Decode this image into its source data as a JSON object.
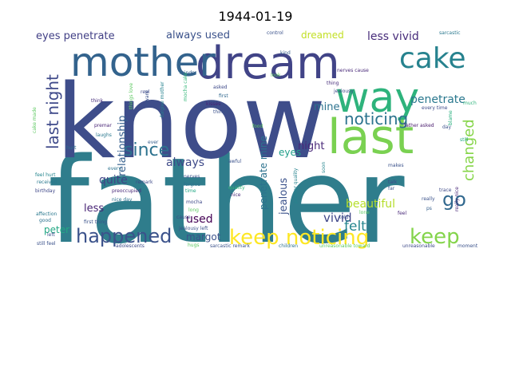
{
  "chart_data": {
    "type": "wordcloud",
    "title": "1944-01-19",
    "background": "#ffffff",
    "colormap": "viridis",
    "words": [
      {
        "text": "father",
        "color": "#2f7d8c"
      },
      {
        "text": "know",
        "color": "#3e4d8a"
      },
      {
        "text": "dream",
        "color": "#414487"
      },
      {
        "text": "mother",
        "color": "#33638d"
      },
      {
        "text": "way",
        "color": "#2eb37c"
      },
      {
        "text": "last",
        "color": "#7ad151"
      },
      {
        "text": "cake",
        "color": "#26828e"
      },
      {
        "text": "keep noticing",
        "color": "#fde725"
      },
      {
        "text": "keep",
        "color": "#84d44b"
      },
      {
        "text": "happened",
        "color": "#3b528b"
      },
      {
        "text": "last night",
        "color": "#3f4a8a"
      },
      {
        "text": "since",
        "color": "#2c728e"
      },
      {
        "text": "go",
        "color": "#31688e"
      },
      {
        "text": "noticing",
        "color": "#2c738e"
      },
      {
        "text": "changed",
        "color": "#86d549"
      },
      {
        "text": "penetrate",
        "color": "#2a788e"
      },
      {
        "text": "eyes penetrate",
        "color": "#424086"
      },
      {
        "text": "always used",
        "color": "#3b528b"
      },
      {
        "text": "dreamed",
        "color": "#c2df23"
      },
      {
        "text": "less vivid",
        "color": "#472c7a"
      },
      {
        "text": "relationship",
        "color": "#355f8d"
      },
      {
        "text": "mine",
        "color": "#2c728e"
      },
      {
        "text": "night",
        "color": "#482878"
      },
      {
        "text": "always",
        "color": "#3e4a89"
      },
      {
        "text": "eyes",
        "color": "#1f9e89"
      },
      {
        "text": "quite",
        "color": "#414487"
      },
      {
        "text": "penetrate mine",
        "color": "#2c728e"
      },
      {
        "text": "jealous",
        "color": "#3b528b"
      },
      {
        "text": "beautiful",
        "color": "#b5de2b"
      },
      {
        "text": "vivid",
        "color": "#3f4788"
      },
      {
        "text": "felt",
        "color": "#25858e"
      },
      {
        "text": "less",
        "color": "#482475"
      },
      {
        "text": "used",
        "color": "#440154"
      },
      {
        "text": "peter",
        "color": "#22a884"
      },
      {
        "text": "margot",
        "color": "#3b528b"
      },
      {
        "text": "control",
        "color": "#3b528b"
      },
      {
        "text": "sarcastic",
        "color": "#2a788e"
      },
      {
        "text": "kind",
        "color": "#355f8d"
      },
      {
        "text": "nerves cause",
        "color": "#482878"
      },
      {
        "text": "thing",
        "color": "#472d7b"
      },
      {
        "text": "jealousy",
        "color": "#3e4a89"
      },
      {
        "text": "much",
        "color": "#2fb47c"
      },
      {
        "text": "every time",
        "color": "#3e4a89"
      },
      {
        "text": "day",
        "color": "#3b528b"
      },
      {
        "text": "blame",
        "color": "#2ab07f"
      },
      {
        "text": "still",
        "color": "#22a884"
      },
      {
        "text": "father asked",
        "color": "#481a6c"
      },
      {
        "text": "minds",
        "color": "#355f8d"
      },
      {
        "text": "asked",
        "color": "#3e4a89"
      },
      {
        "text": "first",
        "color": "#31688e"
      },
      {
        "text": "kisses",
        "color": "#482173"
      },
      {
        "text": "things",
        "color": "#3b528b"
      },
      {
        "text": "mocha cake",
        "color": "#35b779"
      },
      {
        "text": "forgive mother",
        "color": "#26828e"
      },
      {
        "text": "think",
        "color": "#472d7b"
      },
      {
        "text": "real",
        "color": "#3e4a89"
      },
      {
        "text": "feel hurt",
        "color": "#25858e"
      },
      {
        "text": "received",
        "color": "#2a788e"
      },
      {
        "text": "birthday",
        "color": "#3f4788"
      },
      {
        "text": "affection",
        "color": "#2a788e"
      },
      {
        "text": "good",
        "color": "#2c728e"
      },
      {
        "text": "left",
        "color": "#3b528b"
      },
      {
        "text": "still feel",
        "color": "#3b528b"
      },
      {
        "text": "hurt",
        "color": "#2d708e"
      },
      {
        "text": "every",
        "color": "#2c728e"
      },
      {
        "text": "laughs",
        "color": "#2a788e"
      },
      {
        "text": "premar",
        "color": "#482475"
      },
      {
        "text": "ever",
        "color": "#355f8d"
      },
      {
        "text": "preoccupied",
        "color": "#482878"
      },
      {
        "text": "nice day",
        "color": "#2c728e"
      },
      {
        "text": "remark",
        "color": "#3e4a89"
      },
      {
        "text": "nerves",
        "color": "#3b528b"
      },
      {
        "text": "forgive",
        "color": "#2c728e"
      },
      {
        "text": "time",
        "color": "#22a884"
      },
      {
        "text": "nice",
        "color": "#482878"
      },
      {
        "text": "awful",
        "color": "#3b528b"
      },
      {
        "text": "food",
        "color": "#5ec962"
      },
      {
        "text": "premar quality",
        "color": "#26828e"
      },
      {
        "text": "told",
        "color": "#3b528b"
      },
      {
        "text": "soon",
        "color": "#25858e"
      },
      {
        "text": "makes",
        "color": "#3b528b"
      },
      {
        "text": "talk",
        "color": "#3e4a89"
      },
      {
        "text": "far",
        "color": "#3b528b"
      },
      {
        "text": "trace",
        "color": "#3e4a89"
      },
      {
        "text": "feel",
        "color": "#482878"
      },
      {
        "text": "ps",
        "color": "#355f8d"
      },
      {
        "text": "really nice",
        "color": "#482878"
      },
      {
        "text": "really",
        "color": "#3b528b"
      },
      {
        "text": "lone",
        "color": "#5ec962"
      },
      {
        "text": "quality",
        "color": "#35b779"
      },
      {
        "text": "first thing",
        "color": "#3b528b"
      },
      {
        "text": "mocha",
        "color": "#3e4a89"
      },
      {
        "text": "cause",
        "color": "#3e4a89"
      },
      {
        "text": "long",
        "color": "#5ec962"
      },
      {
        "text": "jealousy left",
        "color": "#3b528b"
      },
      {
        "text": "hugs",
        "color": "#5ec962"
      },
      {
        "text": "adolescents",
        "color": "#3e4a89"
      },
      {
        "text": "sarcastic remark",
        "color": "#3b528b"
      },
      {
        "text": "children",
        "color": "#2c728e"
      },
      {
        "text": "unreasonable toward",
        "color": "#5ec962"
      },
      {
        "text": "unreasonable",
        "color": "#3e4a89"
      },
      {
        "text": "moment",
        "color": "#3b528b"
      },
      {
        "text": "toward",
        "color": "#3b528b"
      },
      {
        "text": "things love",
        "color": "#5ec962"
      },
      {
        "text": "cake made",
        "color": "#5ec962"
      },
      {
        "text": "look",
        "color": "#5ec962"
      }
    ]
  }
}
